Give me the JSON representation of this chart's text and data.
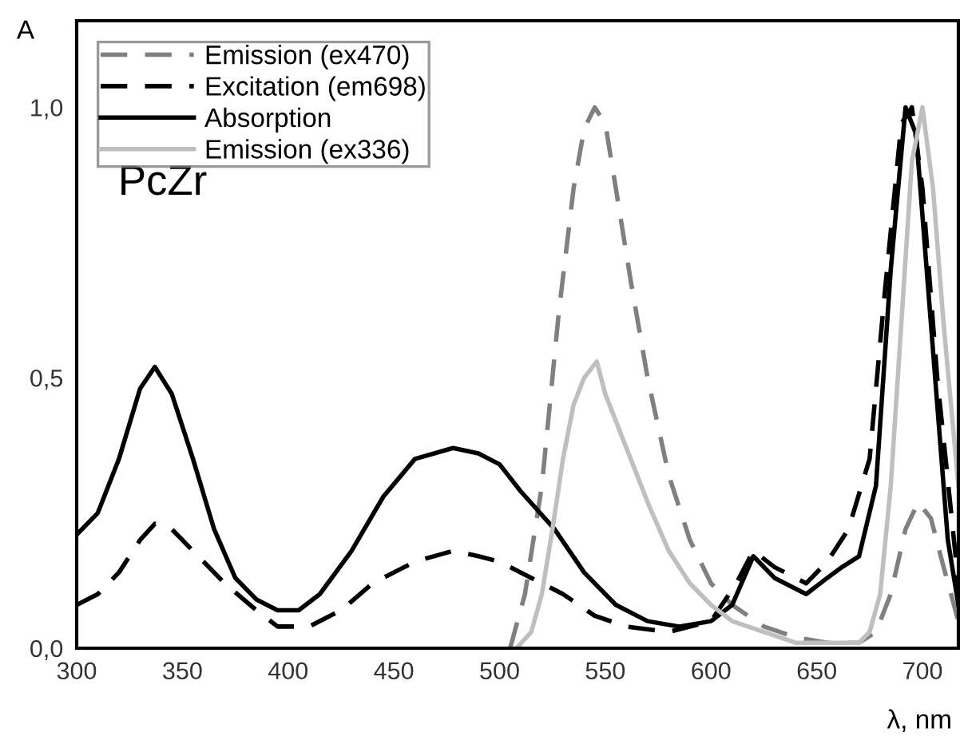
{
  "chart_data": {
    "type": "line",
    "xlabel": "λ, nm",
    "ylabel": "A",
    "annotations": [
      "PcZr"
    ],
    "xlim": [
      300,
      717
    ],
    "ylim": [
      0,
      1.16
    ],
    "xticks": [
      300,
      350,
      400,
      450,
      500,
      550,
      600,
      650,
      700
    ],
    "yticks": [
      {
        "value": 0,
        "label": "0,0"
      },
      {
        "value": 0.5,
        "label": "0,5"
      },
      {
        "value": 1.0,
        "label": "1,0"
      }
    ],
    "legend": "top left",
    "grid": false,
    "marker": "none",
    "series": [
      {
        "name": "Emission (ex470)",
        "color": "#808080",
        "line_style": "dashed",
        "x": [
          505,
          512,
          520,
          528,
          535,
          540,
          545,
          550,
          555,
          562,
          570,
          580,
          590,
          600,
          610,
          625,
          640,
          655,
          670,
          678,
          685,
          692,
          698,
          704,
          710,
          717
        ],
        "values": [
          0.0,
          0.1,
          0.3,
          0.62,
          0.85,
          0.96,
          1.0,
          0.97,
          0.85,
          0.68,
          0.5,
          0.32,
          0.2,
          0.12,
          0.08,
          0.04,
          0.02,
          0.01,
          0.01,
          0.03,
          0.1,
          0.22,
          0.27,
          0.24,
          0.15,
          0.05
        ]
      },
      {
        "name": "Excitation (em698)",
        "color": "#000000",
        "line_style": "dashed",
        "x": [
          300,
          310,
          320,
          330,
          337,
          345,
          355,
          370,
          385,
          395,
          410,
          425,
          440,
          460,
          478,
          490,
          500,
          515,
          530,
          545,
          560,
          580,
          600,
          612,
          620,
          630,
          645,
          655,
          665,
          675,
          682,
          690,
          695,
          700,
          707,
          717
        ],
        "values": [
          0.08,
          0.1,
          0.14,
          0.2,
          0.23,
          0.22,
          0.18,
          0.12,
          0.07,
          0.04,
          0.04,
          0.07,
          0.12,
          0.16,
          0.18,
          0.17,
          0.16,
          0.13,
          0.1,
          0.06,
          0.04,
          0.03,
          0.05,
          0.12,
          0.18,
          0.15,
          0.12,
          0.16,
          0.22,
          0.35,
          0.65,
          0.97,
          1.0,
          0.85,
          0.5,
          0.12
        ]
      },
      {
        "name": "Absorption",
        "color": "#000000",
        "line_style": "solid",
        "x": [
          300,
          310,
          320,
          330,
          337,
          345,
          355,
          365,
          375,
          385,
          395,
          405,
          415,
          430,
          445,
          460,
          478,
          490,
          500,
          510,
          526,
          540,
          555,
          570,
          585,
          600,
          610,
          620,
          630,
          645,
          655,
          662,
          670,
          678,
          685,
          692,
          697,
          705,
          712,
          717
        ],
        "values": [
          0.21,
          0.25,
          0.35,
          0.48,
          0.52,
          0.47,
          0.35,
          0.22,
          0.13,
          0.09,
          0.07,
          0.07,
          0.1,
          0.18,
          0.28,
          0.35,
          0.37,
          0.36,
          0.34,
          0.29,
          0.22,
          0.14,
          0.08,
          0.05,
          0.04,
          0.05,
          0.08,
          0.17,
          0.13,
          0.1,
          0.13,
          0.15,
          0.17,
          0.3,
          0.7,
          1.0,
          0.95,
          0.55,
          0.2,
          0.08
        ]
      },
      {
        "name": "Emission (ex336)",
        "color": "#bfbfbf",
        "line_style": "solid",
        "x": [
          508,
          515,
          520,
          525,
          530,
          535,
          540,
          546,
          550,
          555,
          562,
          570,
          580,
          590,
          600,
          610,
          625,
          640,
          655,
          670,
          675,
          680,
          685,
          690,
          695,
          700,
          705,
          710,
          717
        ],
        "values": [
          0.0,
          0.03,
          0.1,
          0.22,
          0.35,
          0.45,
          0.5,
          0.53,
          0.47,
          0.42,
          0.35,
          0.27,
          0.18,
          0.12,
          0.08,
          0.05,
          0.03,
          0.01,
          0.01,
          0.01,
          0.03,
          0.1,
          0.3,
          0.6,
          0.9,
          1.0,
          0.85,
          0.6,
          0.3
        ]
      }
    ]
  }
}
